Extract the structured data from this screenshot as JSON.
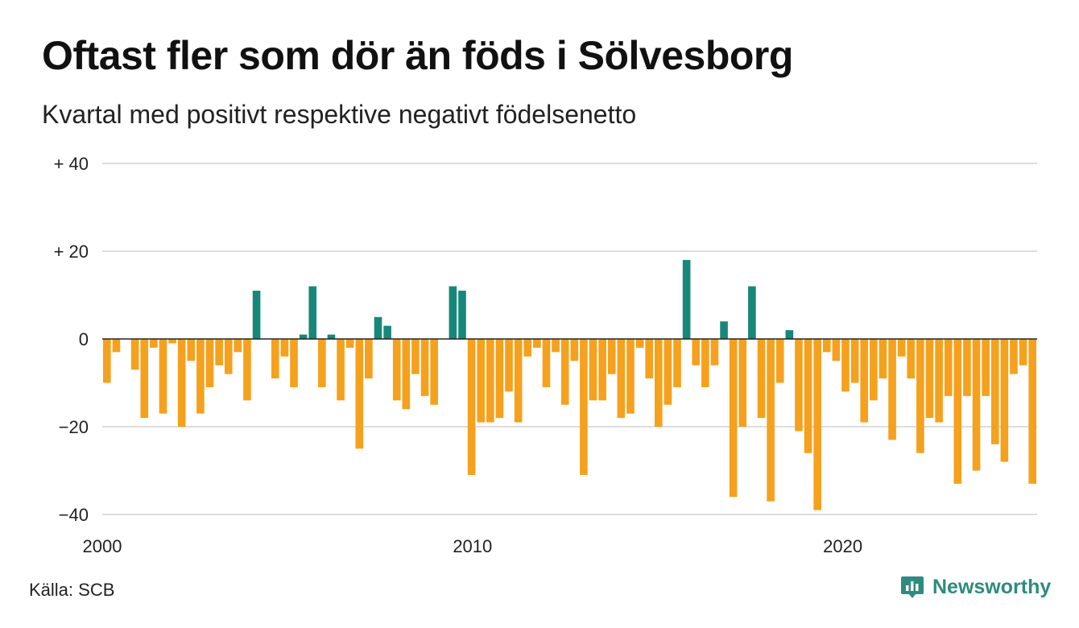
{
  "title": "Oftast fler som dör än föds i Sölvesborg",
  "subtitle": "Kvartal med positivt respektive negativt födelsenetto",
  "source": "Källa: SCB",
  "brand": {
    "name": "Newsworthy",
    "icon": "chart-bubble-icon"
  },
  "colors": {
    "positive": "#17877a",
    "negative": "#f5a11d",
    "grid": "#dddddd",
    "zero_line": "#222222",
    "brand": "#2e8b7f"
  },
  "chart_data": {
    "type": "bar",
    "title": "Oftast fler som dör än föds i Sölvesborg",
    "subtitle": "Kvartal med positivt respektive negativt födelsenetto",
    "xlabel": "",
    "ylabel": "",
    "ylim": [
      -40,
      40
    ],
    "xlim": [
      2000,
      2025.25
    ],
    "yticks": [
      {
        "value": 40,
        "label": "+ 40"
      },
      {
        "value": 20,
        "label": "+ 20"
      },
      {
        "value": 0,
        "label": "0"
      },
      {
        "value": -20,
        "label": "−20"
      },
      {
        "value": -40,
        "label": "−40"
      }
    ],
    "xticks": [
      {
        "value": 2000,
        "label": "2000"
      },
      {
        "value": 2010,
        "label": "2010"
      },
      {
        "value": 2020,
        "label": "2020"
      }
    ],
    "grid": true,
    "legend": "none",
    "start_quarter": "2000 K1",
    "frequency": "quarterly",
    "values": [
      -10,
      -3,
      0,
      -7,
      -18,
      -2,
      -17,
      -1,
      -20,
      -5,
      -17,
      -11,
      -6,
      -8,
      -3,
      -14,
      11,
      0,
      -9,
      -4,
      -11,
      1,
      12,
      -11,
      1,
      -14,
      -2,
      -25,
      -9,
      5,
      3,
      -14,
      -16,
      -8,
      -13,
      -15,
      0,
      12,
      11,
      -31,
      -19,
      -19,
      -18,
      -12,
      -19,
      -4,
      -2,
      -11,
      -3,
      -15,
      -5,
      -31,
      -14,
      -14,
      -8,
      -18,
      -17,
      -2,
      -9,
      -20,
      -15,
      -11,
      18,
      -6,
      -11,
      -6,
      4,
      -36,
      -20,
      12,
      -18,
      -37,
      -10,
      2,
      -21,
      -26,
      -39,
      -3,
      -5,
      -12,
      -10,
      -19,
      -14,
      -9,
      -23,
      -4,
      -9,
      -26,
      -18,
      -19,
      -13,
      -33,
      -13,
      -30,
      -13,
      -24,
      -28,
      -8,
      -6,
      -33
    ]
  }
}
